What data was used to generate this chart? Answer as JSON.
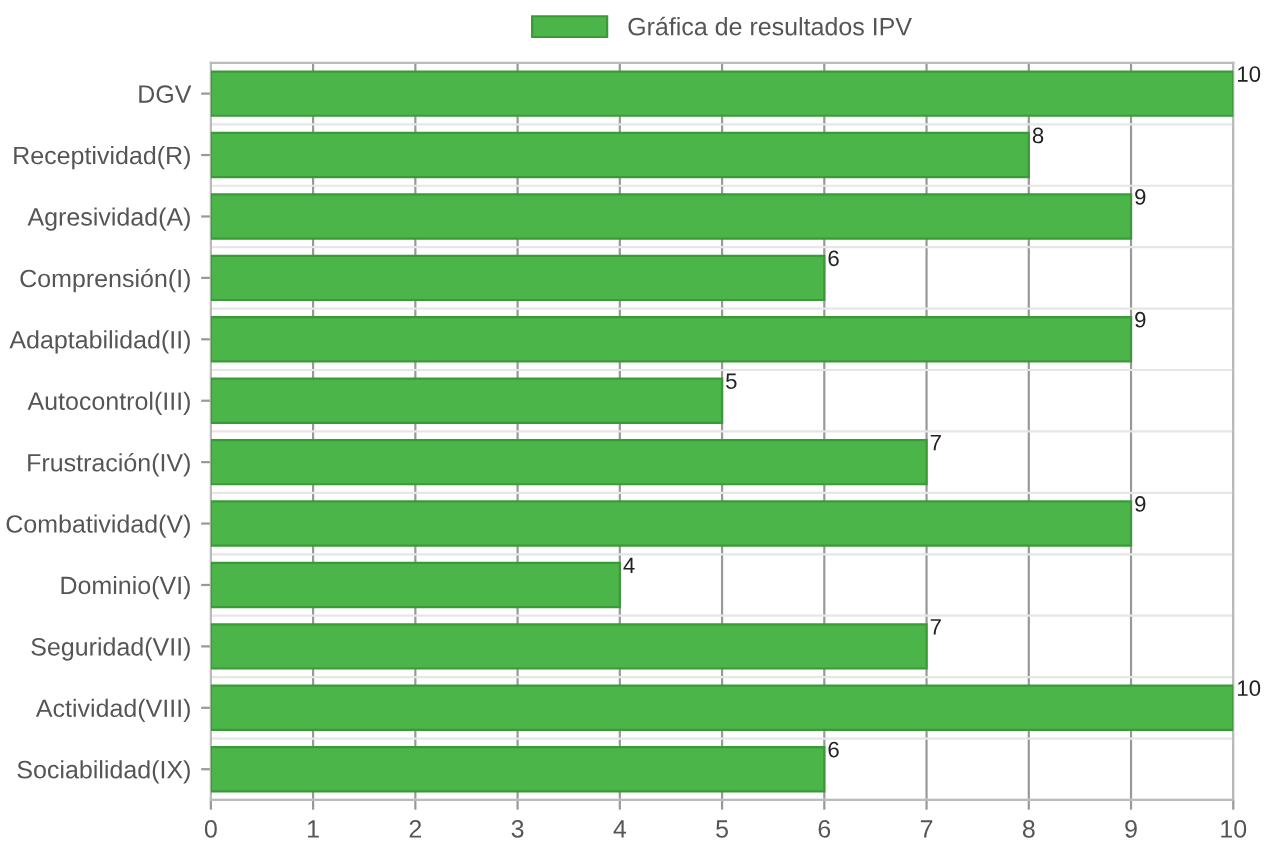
{
  "chart_data": {
    "type": "bar",
    "orientation": "horizontal",
    "categories": [
      "DGV",
      "Receptividad(R)",
      "Agresividad(A)",
      "Comprensión(I)",
      "Adaptabilidad(II)",
      "Autocontrol(III)",
      "Frustración(IV)",
      "Combatividad(V)",
      "Dominio(VI)",
      "Seguridad(VII)",
      "Actividad(VIII)",
      "Sociabilidad(IX)"
    ],
    "series": [
      {
        "name": "Gráfica de resultados IPV",
        "color": "#4cb54a",
        "values": [
          10,
          8,
          9,
          6,
          9,
          5,
          7,
          9,
          4,
          7,
          10,
          6
        ]
      }
    ],
    "xlim": [
      0,
      10
    ],
    "xticks": [
      0,
      1,
      2,
      3,
      4,
      5,
      6,
      7,
      8,
      9,
      10
    ],
    "grid": true,
    "legend": "top",
    "data_labels": true
  }
}
